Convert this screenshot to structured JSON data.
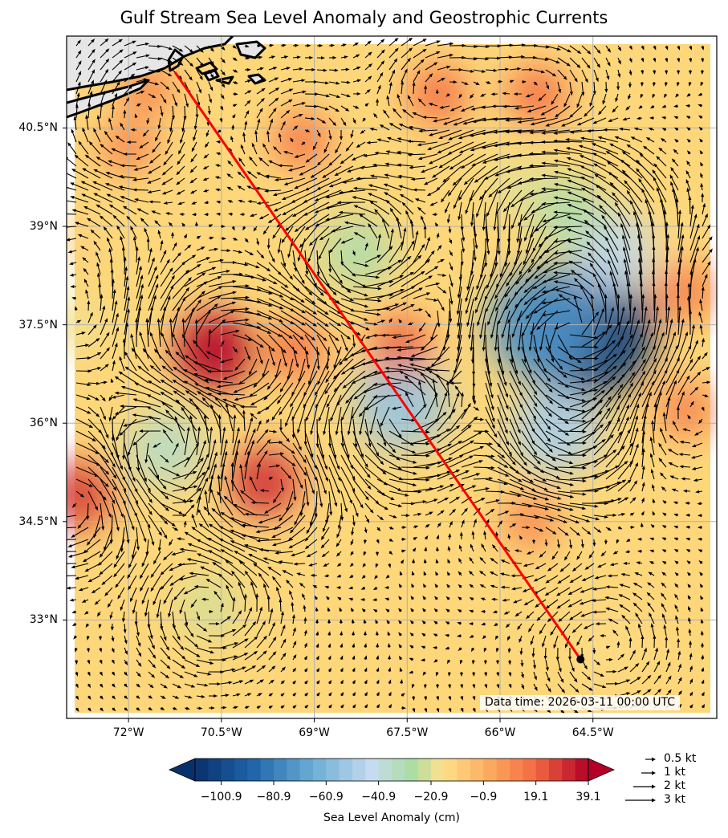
{
  "title": "Gulf Stream Sea Level Anomaly and Geostrophic Currents",
  "map": {
    "lon_range": [
      -73.0,
      -62.5
    ],
    "lat_range": [
      31.5,
      41.9
    ],
    "x_ticks": [
      {
        "lon": -72.0,
        "label": "72°W"
      },
      {
        "lon": -70.5,
        "label": "70.5°W"
      },
      {
        "lon": -69.0,
        "label": "69°W"
      },
      {
        "lon": -67.5,
        "label": "67.5°W"
      },
      {
        "lon": -66.0,
        "label": "66°W"
      },
      {
        "lon": -64.5,
        "label": "64.5°W"
      }
    ],
    "y_ticks": [
      {
        "lat": 40.5,
        "label": "40.5°N"
      },
      {
        "lat": 39.0,
        "label": "39°N"
      },
      {
        "lat": 37.5,
        "label": "37.5°N"
      },
      {
        "lat": 36.0,
        "label": "36°N"
      },
      {
        "lat": 34.5,
        "label": "34.5°N"
      },
      {
        "lat": 33.0,
        "label": "33°N"
      }
    ],
    "grid": true,
    "ocean_background": "#fdd77a",
    "land_color": "#e6e6e6",
    "route": {
      "color": "#ff0000",
      "start": {
        "lon": -71.25,
        "lat": 41.35
      },
      "end": {
        "lon": -64.7,
        "lat": 32.4
      }
    },
    "anomaly_features_cm": [
      {
        "lon": -64.6,
        "lat": 37.4,
        "value": -105
      },
      {
        "lon": -65.3,
        "lat": 37.5,
        "value": -75
      },
      {
        "lon": -64.2,
        "lat": 38.6,
        "value": -45
      },
      {
        "lon": -67.6,
        "lat": 36.3,
        "value": -55
      },
      {
        "lon": -65.1,
        "lat": 35.9,
        "value": -50
      },
      {
        "lon": -71.4,
        "lat": 35.6,
        "value": -35
      },
      {
        "lon": -68.3,
        "lat": 38.6,
        "value": -30
      },
      {
        "lon": -70.7,
        "lat": 33.2,
        "value": -22
      },
      {
        "lon": -64.3,
        "lat": 32.6,
        "value": -15
      },
      {
        "lon": -72.9,
        "lat": 37.5,
        "value": -18
      },
      {
        "lon": -72.7,
        "lat": 38.8,
        "value": -12
      },
      {
        "lon": -65.7,
        "lat": 39.6,
        "value": -20
      },
      {
        "lon": -64.9,
        "lat": 39.2,
        "value": -30
      },
      {
        "lon": -70.6,
        "lat": 37.1,
        "value": 39
      },
      {
        "lon": -69.3,
        "lat": 37.1,
        "value": 18
      },
      {
        "lon": -67.6,
        "lat": 37.2,
        "value": 20
      },
      {
        "lon": -69.8,
        "lat": 35.1,
        "value": 30
      },
      {
        "lon": -72.8,
        "lat": 34.9,
        "value": 28
      },
      {
        "lon": -67.0,
        "lat": 41.0,
        "value": 18
      },
      {
        "lon": -65.4,
        "lat": 41.0,
        "value": 18
      },
      {
        "lon": -69.2,
        "lat": 40.3,
        "value": 16
      },
      {
        "lon": -72.0,
        "lat": 40.2,
        "value": 12
      },
      {
        "lon": -63.0,
        "lat": 38.0,
        "value": 15
      },
      {
        "lon": -63.0,
        "lat": 36.2,
        "value": 14
      },
      {
        "lon": -65.5,
        "lat": 34.5,
        "value": 12
      },
      {
        "lon": -71.7,
        "lat": 41.1,
        "value": 12
      }
    ]
  },
  "data_time": "Data time: 2026-03-11 00:00 UTC",
  "colorbar": {
    "label": "Sea Level Anomaly (cm)",
    "range": [
      -110.9,
      39.1
    ],
    "tick_values": [
      -100.9,
      -80.9,
      -60.9,
      -40.9,
      -20.9,
      -0.9,
      19.1,
      39.1
    ],
    "tick_labels": [
      "−100.9",
      "−80.9",
      "−60.9",
      "−40.9",
      "−20.9",
      "−0.9",
      "19.1",
      "39.1"
    ],
    "extend": "both",
    "colormap": "RdYlBu_r"
  },
  "quiver_key": [
    {
      "speed": 0.5,
      "label": "0.5 kt"
    },
    {
      "speed": 1,
      "label": "1 kt"
    },
    {
      "speed": 2,
      "label": "2 kt"
    },
    {
      "speed": 3,
      "label": "3 kt"
    }
  ]
}
